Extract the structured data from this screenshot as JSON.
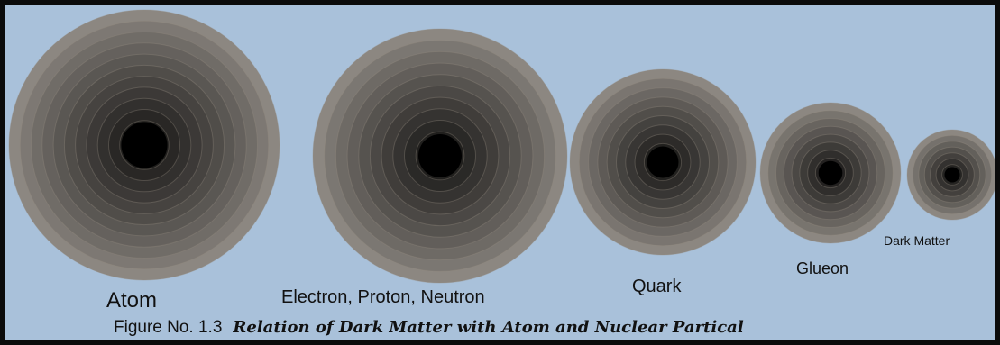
{
  "colors": {
    "background": "#a9c1da",
    "border": "#0b0b0b",
    "outer_ring": "#8c8781",
    "ring_mid": "#5e5b58",
    "core": "#000000"
  },
  "particles": [
    {
      "id": "atom",
      "label": "Atom"
    },
    {
      "id": "electron-proton-neutron",
      "label": "Electron, Proton, Neutron"
    },
    {
      "id": "quark",
      "label": "Quark"
    },
    {
      "id": "gluon",
      "label": "Glueon"
    },
    {
      "id": "dark-matter",
      "label": "Dark Matter"
    }
  ],
  "caption": {
    "number": "Figure No. 1.3",
    "title": "Relation of Dark Matter with Atom and Nuclear Partical"
  }
}
